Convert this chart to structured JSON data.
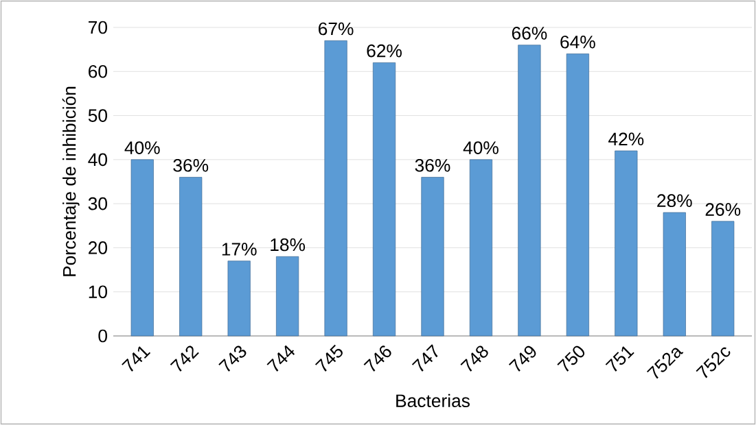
{
  "chart_data": {
    "type": "bar",
    "xlabel": "Bacterias",
    "ylabel": "Porcentaje de inhibición",
    "categories": [
      "741",
      "742",
      "743",
      "744",
      "745",
      "746",
      "747",
      "748",
      "749",
      "750",
      "751",
      "752a",
      "752c"
    ],
    "values": [
      40,
      36,
      17,
      18,
      67,
      62,
      36,
      40,
      66,
      64,
      42,
      28,
      26
    ],
    "value_labels": [
      "40%",
      "36%",
      "17%",
      "18%",
      "67%",
      "62%",
      "36%",
      "40%",
      "66%",
      "64%",
      "42%",
      "28%",
      "26%"
    ],
    "color": "#5b9bd5",
    "ylim": [
      0,
      70
    ],
    "yticks": [
      0,
      10,
      20,
      30,
      40,
      50,
      60,
      70
    ],
    "grid": "y"
  }
}
